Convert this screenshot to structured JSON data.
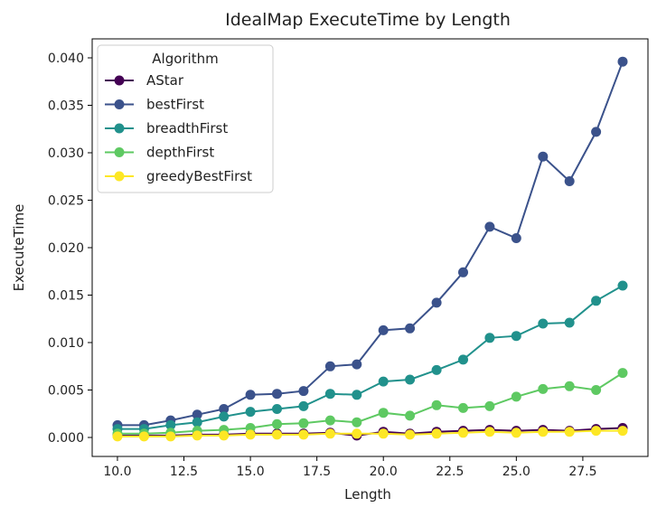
{
  "chart_data": {
    "type": "line",
    "title": "IdealMap ExecuteTime by Length",
    "xlabel": "Length",
    "ylabel": "ExecuteTime",
    "xlim": [
      9.05,
      29.95
    ],
    "ylim": [
      -0.002,
      0.042
    ],
    "xticks": [
      10.0,
      12.5,
      15.0,
      17.5,
      20.0,
      22.5,
      25.0,
      27.5
    ],
    "xtick_labels": [
      "10.0",
      "12.5",
      "15.0",
      "17.5",
      "20.0",
      "22.5",
      "25.0",
      "27.5"
    ],
    "yticks": [
      0.0,
      0.005,
      0.01,
      0.015,
      0.02,
      0.025,
      0.03,
      0.035,
      0.04
    ],
    "ytick_labels": [
      "0.000",
      "0.005",
      "0.010",
      "0.015",
      "0.020",
      "0.025",
      "0.030",
      "0.035",
      "0.040"
    ],
    "grid": false,
    "legend": {
      "title": "Algorithm",
      "position": "upper-left"
    },
    "x": [
      10,
      11,
      12,
      13,
      14,
      15,
      16,
      17,
      18,
      19,
      20,
      21,
      22,
      23,
      24,
      25,
      26,
      27,
      28,
      29
    ],
    "series": [
      {
        "name": "AStar",
        "color": "#440154",
        "values": [
          0.0002,
          0.0002,
          0.0002,
          0.0003,
          0.0003,
          0.0004,
          0.0004,
          0.0004,
          0.0005,
          0.0002,
          0.0006,
          0.0004,
          0.0006,
          0.0007,
          0.0008,
          0.0007,
          0.0008,
          0.0007,
          0.0009,
          0.001
        ]
      },
      {
        "name": "bestFirst",
        "color": "#3b528b",
        "values": [
          0.0013,
          0.0013,
          0.0018,
          0.0024,
          0.003,
          0.0045,
          0.0046,
          0.0049,
          0.0075,
          0.0077,
          0.0113,
          0.0115,
          0.0142,
          0.0174,
          0.0222,
          0.021,
          0.0296,
          0.027,
          0.0322,
          0.0396
        ]
      },
      {
        "name": "breadthFirst",
        "color": "#21918c",
        "values": [
          0.0009,
          0.0009,
          0.0013,
          0.0016,
          0.0022,
          0.0027,
          0.003,
          0.0033,
          0.0046,
          0.0045,
          0.0059,
          0.0061,
          0.0071,
          0.0082,
          0.0105,
          0.0107,
          0.012,
          0.0121,
          0.0144,
          0.016
        ]
      },
      {
        "name": "depthFirst",
        "color": "#5ec962",
        "values": [
          0.0004,
          0.0004,
          0.0005,
          0.0007,
          0.0008,
          0.001,
          0.0014,
          0.0015,
          0.0018,
          0.0016,
          0.0026,
          0.0023,
          0.0034,
          0.0031,
          0.0033,
          0.0043,
          0.0051,
          0.0054,
          0.005,
          0.0068
        ]
      },
      {
        "name": "greedyBestFirst",
        "color": "#fde725",
        "values": [
          0.0001,
          0.0001,
          0.0001,
          0.0002,
          0.0002,
          0.0003,
          0.0003,
          0.0003,
          0.0004,
          0.0004,
          0.0004,
          0.0003,
          0.0004,
          0.0005,
          0.0006,
          0.0005,
          0.0006,
          0.0006,
          0.0007,
          0.0007
        ]
      }
    ]
  }
}
